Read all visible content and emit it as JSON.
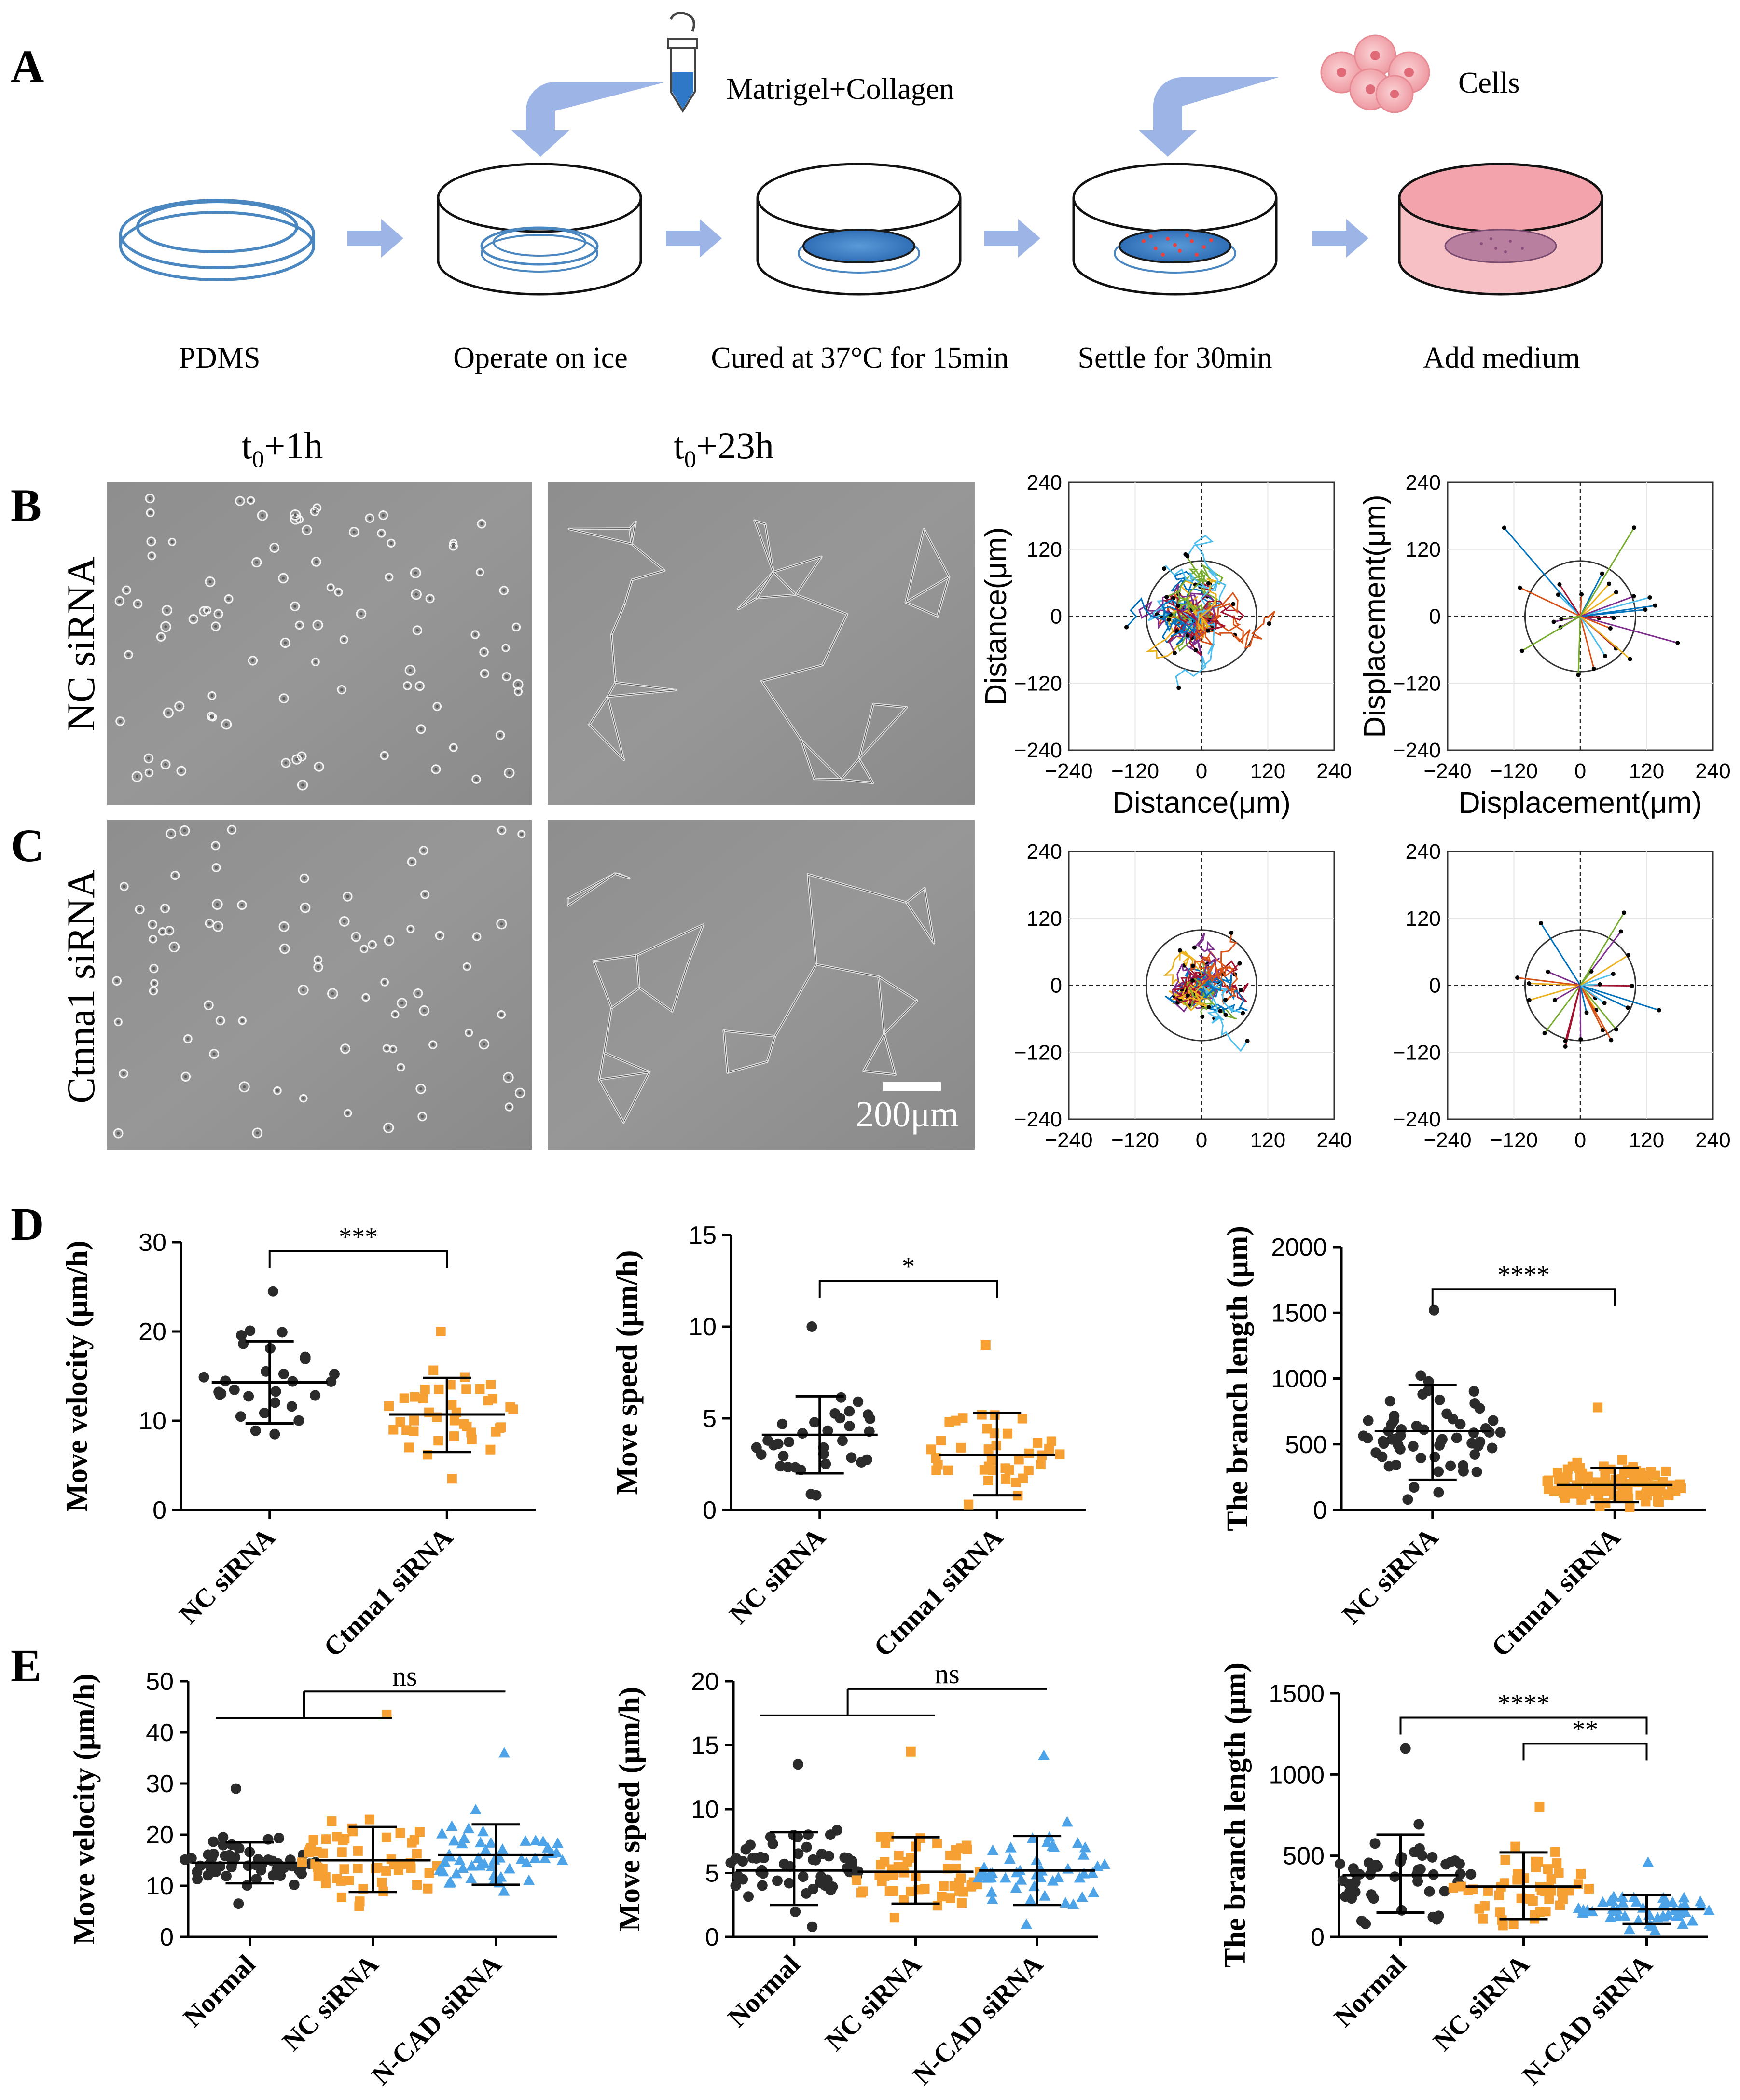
{
  "panels": {
    "A": "A",
    "B": "B",
    "C": "C",
    "D": "D",
    "E": "E"
  },
  "panel_a": {
    "labels": {
      "matrigel": "Matrigel+Collagen",
      "cells": "Cells",
      "step1": "PDMS",
      "step2": "Operate on ice",
      "step3": "Cured at 37°C for 15min",
      "step4": "Settle for 30min",
      "step5": "Add medium"
    },
    "colors": {
      "arrow": "#9db5e6",
      "dish": "#4a86c0",
      "gel": "#3f7fc8",
      "cell": "#f2a6ad",
      "medium": "#f6b9bf"
    }
  },
  "micrographs": {
    "time1": "t0+1h",
    "time1_base": "t",
    "time1_sub": "0",
    "time1_rest": "+1h",
    "time2": "t0+23h",
    "time2_base": "t",
    "time2_sub": "0",
    "time2_rest": "+23h",
    "row_b_label": "NC siRNA",
    "row_c_label": "Ctnna1 siRNA",
    "scale_bar": "200μm"
  },
  "chart_data": [
    {
      "id": "B-distance",
      "type": "line",
      "xlabel": "Distance(μm)",
      "ylabel": "Distance(μm)",
      "xlim": [
        -240,
        240
      ],
      "ylim": [
        -240,
        240
      ],
      "xticks": [
        "−240",
        "−120",
        "0",
        "120",
        "240"
      ],
      "yticks": [
        "240",
        "120",
        "0",
        "−120",
        "−240"
      ],
      "circle_radius": 100,
      "description_series": "many colored cell migration trajectories from origin"
    },
    {
      "id": "B-displacement",
      "type": "line",
      "xlabel": "Displacement(μm)",
      "ylabel": "Displacement(μm)",
      "xlim": [
        -240,
        240
      ],
      "ylim": [
        -240,
        240
      ],
      "xticks": [
        "−240",
        "−120",
        "0",
        "120",
        "240"
      ],
      "yticks": [
        "240",
        "120",
        "0",
        "−120",
        "−240"
      ],
      "circle_radius": 100
    },
    {
      "id": "C-distance",
      "type": "line",
      "xlim": [
        -240,
        240
      ],
      "ylim": [
        -240,
        240
      ],
      "xticks": [
        "−240",
        "−120",
        "0",
        "120",
        "240"
      ],
      "yticks": [
        "240",
        "120",
        "0",
        "−120",
        "−240"
      ],
      "circle_radius": 100
    },
    {
      "id": "C-displacement",
      "type": "line",
      "xlim": [
        -240,
        240
      ],
      "ylim": [
        -240,
        240
      ],
      "xticks": [
        "−240",
        "−120",
        "0",
        "120",
        "240"
      ],
      "yticks": [
        "240",
        "120",
        "0",
        "−120",
        "−240"
      ],
      "circle_radius": 100
    },
    {
      "id": "D-velocity",
      "type": "scatter",
      "ylabel": "Move velocity (μm/h)",
      "ylim": [
        0,
        30
      ],
      "yticks": [
        "0",
        "10",
        "20",
        "30"
      ],
      "categories": [
        "NC siRNA",
        "Ctnna1 siRNA"
      ],
      "series": [
        {
          "name": "NC siRNA",
          "mean": 14.3,
          "sd_low": 9.7,
          "sd_high": 18.9,
          "min": 8.5,
          "max": 24.5,
          "n": 30,
          "color": "#2b2b2b",
          "marker": "circle"
        },
        {
          "name": "Ctnna1 siRNA",
          "mean": 10.7,
          "sd_low": 6.5,
          "sd_high": 14.8,
          "min": 3.5,
          "max": 20,
          "n": 40,
          "color": "#f6a033",
          "marker": "square"
        }
      ],
      "brackets": [
        {
          "from": 0,
          "to": 1,
          "label": "***",
          "y": 29
        }
      ]
    },
    {
      "id": "D-speed",
      "type": "scatter",
      "ylabel": "Move speed (μm/h)",
      "ylim": [
        0,
        15
      ],
      "yticks": [
        "0",
        "5",
        "10",
        "15"
      ],
      "categories": [
        "NC siRNA",
        "Ctnna1 siRNA"
      ],
      "series": [
        {
          "name": "NC siRNA",
          "mean": 4.1,
          "sd_low": 2.0,
          "sd_high": 6.2,
          "min": 0.8,
          "max": 10,
          "n": 34,
          "color": "#2b2b2b",
          "marker": "circle"
        },
        {
          "name": "Ctnna1 siRNA",
          "mean": 3.0,
          "sd_low": 0.8,
          "sd_high": 5.3,
          "min": 0.3,
          "max": 9,
          "n": 40,
          "color": "#f6a033",
          "marker": "square"
        }
      ],
      "brackets": [
        {
          "from": 0,
          "to": 1,
          "label": "*",
          "y": 12.5
        }
      ]
    },
    {
      "id": "D-branch",
      "type": "scatter",
      "ylabel": "The branch length (μm)",
      "ylim": [
        0,
        2000
      ],
      "yticks": [
        "0",
        "500",
        "1000",
        "1500",
        "2000"
      ],
      "categories": [
        "NC siRNA",
        "Ctnna1 siRNA"
      ],
      "series": [
        {
          "name": "NC siRNA",
          "mean": 600,
          "sd_low": 230,
          "sd_high": 950,
          "min": 80,
          "max": 1520,
          "n": 60,
          "color": "#2b2b2b",
          "marker": "circle"
        },
        {
          "name": "Ctnna1 siRNA",
          "mean": 190,
          "sd_low": 60,
          "sd_high": 320,
          "min": 20,
          "max": 780,
          "n": 110,
          "color": "#f6a033",
          "marker": "square"
        }
      ],
      "brackets": [
        {
          "from": 0,
          "to": 1,
          "label": "****",
          "y": 1680
        }
      ]
    },
    {
      "id": "E-velocity",
      "type": "scatter",
      "ylabel": "Move velocity (μm/h)",
      "ylim": [
        0,
        50
      ],
      "yticks": [
        "0",
        "10",
        "20",
        "30",
        "40",
        "50"
      ],
      "categories": [
        "Normal",
        "NC siRNA",
        "N-CAD siRNA"
      ],
      "series": [
        {
          "name": "Normal",
          "mean": 14.5,
          "sd_low": 10.5,
          "sd_high": 18.5,
          "min": 6.5,
          "max": 29,
          "n": 55,
          "color": "#2b2b2b",
          "marker": "circle"
        },
        {
          "name": "NC siRNA",
          "mean": 15.0,
          "sd_low": 8.8,
          "sd_high": 21.5,
          "min": 6,
          "max": 43.5,
          "n": 55,
          "color": "#f6a033",
          "marker": "square"
        },
        {
          "name": "N-CAD siRNA",
          "mean": 16.0,
          "sd_low": 10.2,
          "sd_high": 22.0,
          "min": 9,
          "max": 36,
          "n": 50,
          "color": "#4da3e8",
          "marker": "triangle"
        }
      ],
      "brackets": [
        {
          "from": 0,
          "to": 2,
          "label": "ns",
          "y": 48,
          "grouped": true
        }
      ]
    },
    {
      "id": "E-speed",
      "type": "scatter",
      "ylabel": "Move speed (μm/h)",
      "ylim": [
        0,
        20
      ],
      "yticks": [
        "0",
        "5",
        "10",
        "15",
        "20"
      ],
      "categories": [
        "Normal",
        "NC siRNA",
        "N-CAD siRNA"
      ],
      "series": [
        {
          "name": "Normal",
          "mean": 5.2,
          "sd_low": 2.5,
          "sd_high": 8.2,
          "min": 0.8,
          "max": 13.5,
          "n": 55,
          "color": "#2b2b2b",
          "marker": "circle"
        },
        {
          "name": "NC siRNA",
          "mean": 5.1,
          "sd_low": 2.6,
          "sd_high": 7.8,
          "min": 1.5,
          "max": 14.5,
          "n": 55,
          "color": "#f6a033",
          "marker": "square"
        },
        {
          "name": "N-CAD siRNA",
          "mean": 5.2,
          "sd_low": 2.5,
          "sd_high": 7.9,
          "min": 1,
          "max": 14.2,
          "n": 50,
          "color": "#4da3e8",
          "marker": "triangle"
        }
      ],
      "brackets": [
        {
          "from": 0,
          "to": 2,
          "label": "ns",
          "y": 19.4,
          "grouped": true
        }
      ]
    },
    {
      "id": "E-branch",
      "type": "scatter",
      "ylabel": "The branch length (μm)",
      "ylim": [
        0,
        1500
      ],
      "yticks": [
        "0",
        "500",
        "1000",
        "1500"
      ],
      "categories": [
        "Normal",
        "NC siRNA",
        "N-CAD siRNA"
      ],
      "series": [
        {
          "name": "Normal",
          "mean": 380,
          "sd_low": 150,
          "sd_high": 630,
          "min": 80,
          "max": 1160,
          "n": 50,
          "color": "#2b2b2b",
          "marker": "circle"
        },
        {
          "name": "NC siRNA",
          "mean": 310,
          "sd_low": 110,
          "sd_high": 520,
          "min": 70,
          "max": 800,
          "n": 50,
          "color": "#f6a033",
          "marker": "square"
        },
        {
          "name": "N-CAD siRNA",
          "mean": 170,
          "sd_low": 80,
          "sd_high": 260,
          "min": 40,
          "max": 460,
          "n": 50,
          "color": "#4da3e8",
          "marker": "triangle"
        }
      ],
      "brackets": [
        {
          "from": 0,
          "to": 2,
          "label": "****",
          "y": 1350
        },
        {
          "from": 1,
          "to": 2,
          "label": "**",
          "y": 1190
        }
      ]
    }
  ]
}
